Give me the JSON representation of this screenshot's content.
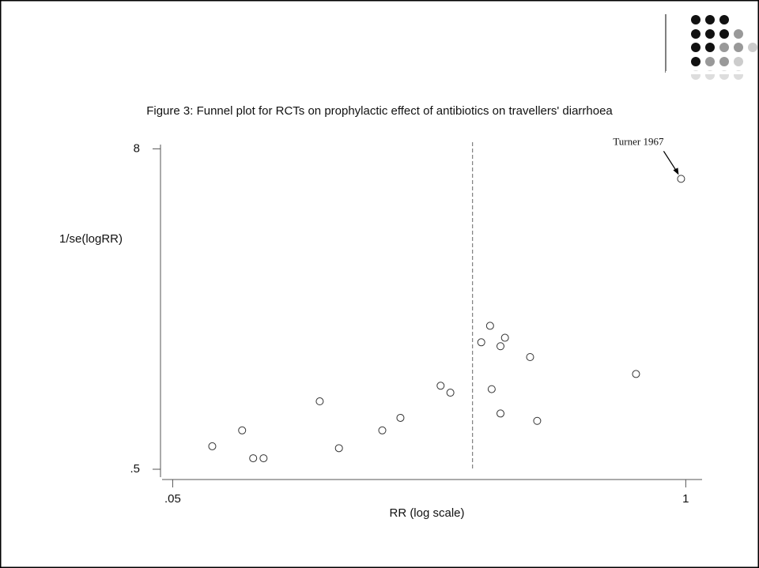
{
  "chart_data": {
    "type": "scatter",
    "title": "Figure 3: Funnel plot for RCTs on prophylactic effect of antibiotics on travellers' diarrhoea",
    "x_label": "RR (log scale)",
    "y_label": "1/se(logRR)",
    "x": [
      0.063,
      0.075,
      0.08,
      0.085,
      0.118,
      0.132,
      0.17,
      0.189,
      0.239,
      0.253,
      0.303,
      0.319,
      0.322,
      0.339,
      0.348,
      0.339,
      0.403,
      0.42,
      0.748,
      0.973
    ],
    "values": [
      0.61,
      0.7,
      0.55,
      0.55,
      0.9,
      0.6,
      0.7,
      0.78,
      1.03,
      0.97,
      1.5,
      1.73,
      1.0,
      1.45,
      1.56,
      0.81,
      1.32,
      0.76,
      1.14,
      6.17
    ],
    "color": "#333333",
    "ref_line_x": 0.288,
    "annotation": "Turner 1967",
    "xscale": "log",
    "yscale": "log",
    "xlim": [
      0.047,
      1.1
    ],
    "ylim": [
      0.467,
      8.3
    ],
    "xticks": [
      {
        "value": 0.05,
        "label": ".05"
      },
      1
    ],
    "yticks": [
      {
        "value": 0.5,
        "label": ".5"
      },
      8
    ]
  }
}
